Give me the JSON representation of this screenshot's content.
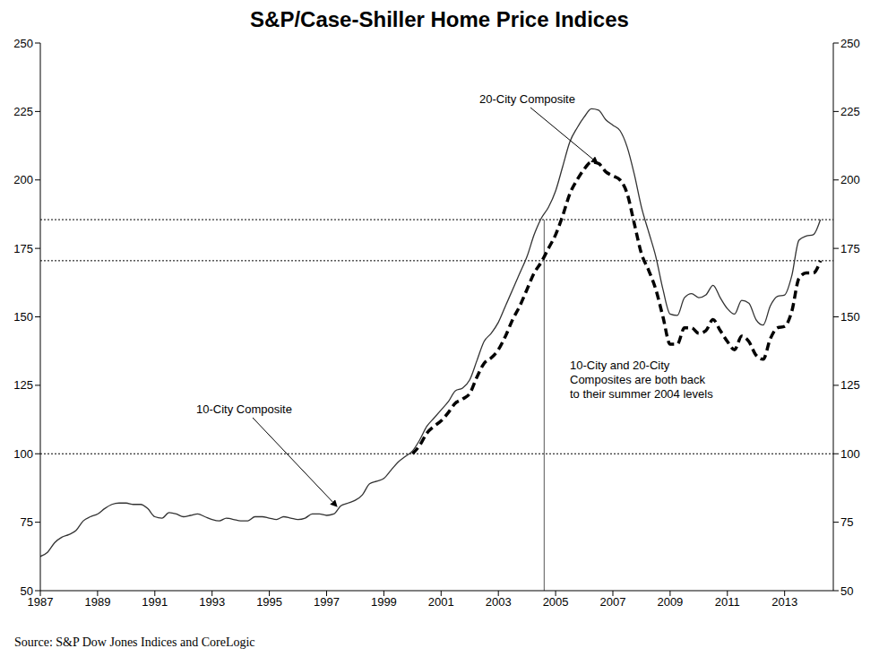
{
  "chart_data": {
    "type": "line",
    "title": "S&P/Case-Shiller Home Price Indices",
    "source": "Source: S&P Dow Jones Indices and CoreLogic",
    "annotation": [
      "10-City and 20-City",
      "Composites are both back",
      "to their summer 2004 levels"
    ],
    "x": [
      1987,
      1987.25,
      1987.5,
      1987.75,
      1988,
      1988.25,
      1988.5,
      1988.75,
      1989,
      1989.25,
      1989.5,
      1989.75,
      1990,
      1990.25,
      1990.5,
      1990.75,
      1991,
      1991.25,
      1991.5,
      1991.75,
      1992,
      1992.25,
      1992.5,
      1992.75,
      1993,
      1993.25,
      1993.5,
      1993.75,
      1994,
      1994.25,
      1994.5,
      1994.75,
      1995,
      1995.25,
      1995.5,
      1995.75,
      1996,
      1996.25,
      1996.5,
      1996.75,
      1997,
      1997.25,
      1997.5,
      1997.75,
      1998,
      1998.25,
      1998.5,
      1998.75,
      1999,
      1999.25,
      1999.5,
      1999.75,
      2000,
      2000.25,
      2000.5,
      2000.75,
      2001,
      2001.25,
      2001.5,
      2001.75,
      2002,
      2002.25,
      2002.5,
      2002.75,
      2003,
      2003.25,
      2003.5,
      2003.75,
      2004,
      2004.25,
      2004.5,
      2004.75,
      2005,
      2005.25,
      2005.5,
      2005.75,
      2006,
      2006.25,
      2006.5,
      2006.75,
      2007,
      2007.25,
      2007.5,
      2007.75,
      2008,
      2008.25,
      2008.5,
      2008.75,
      2009,
      2009.25,
      2009.5,
      2009.75,
      2010,
      2010.25,
      2010.5,
      2010.75,
      2011,
      2011.25,
      2011.5,
      2011.75,
      2012,
      2012.25,
      2012.5,
      2012.75,
      2013,
      2013.25,
      2013.5,
      2013.75,
      2014,
      2014.25
    ],
    "series": [
      {
        "name": "10-City Composite",
        "color": "#333333",
        "line_style": "solid",
        "values": [
          62.5,
          64,
          67.5,
          69.5,
          70.5,
          72,
          75.5,
          77,
          78,
          80,
          81.5,
          82,
          82,
          81.5,
          81.5,
          80,
          77,
          76.5,
          78.5,
          78,
          77,
          77.5,
          78,
          77,
          76,
          75.5,
          76.5,
          76,
          75.5,
          75.5,
          77,
          77,
          76.5,
          76,
          77,
          76.5,
          76,
          76.5,
          78,
          78,
          77.5,
          78,
          81,
          82,
          83,
          85,
          89,
          90,
          91,
          94,
          97,
          99,
          101,
          105,
          110,
          113,
          116,
          119,
          123,
          124,
          127,
          134,
          141,
          144,
          148,
          154,
          160,
          166,
          172,
          180,
          186,
          190,
          196,
          205,
          214,
          219,
          223,
          226,
          225.5,
          222,
          220,
          218,
          212,
          202,
          190,
          181,
          172,
          160,
          151,
          150.5,
          157,
          158.5,
          157,
          158,
          161.5,
          157,
          153,
          151,
          156,
          155,
          149,
          147,
          154,
          157.5,
          158,
          165,
          178,
          179.5,
          180,
          185.5
        ]
      },
      {
        "name": "20-City Composite",
        "color": "#000000",
        "line_style": "dashed",
        "values": [
          null,
          null,
          null,
          null,
          null,
          null,
          null,
          null,
          null,
          null,
          null,
          null,
          null,
          null,
          null,
          null,
          null,
          null,
          null,
          null,
          null,
          null,
          null,
          null,
          null,
          null,
          null,
          null,
          null,
          null,
          null,
          null,
          null,
          null,
          null,
          null,
          null,
          null,
          null,
          null,
          null,
          null,
          null,
          null,
          null,
          null,
          null,
          null,
          null,
          null,
          null,
          null,
          100,
          103,
          107.5,
          110,
          112,
          115,
          118.5,
          120,
          122,
          128,
          133,
          135,
          138,
          143,
          149,
          154,
          160,
          166,
          170,
          175,
          180,
          187,
          195,
          200,
          204,
          206.5,
          206,
          203,
          201.5,
          200,
          195,
          184,
          173,
          167,
          160,
          150,
          140,
          140,
          146,
          146,
          144,
          145,
          149,
          145,
          141,
          138,
          143,
          141,
          136,
          134.5,
          142,
          146,
          146.5,
          152,
          164,
          166,
          166,
          170.5
        ]
      }
    ],
    "xlim": [
      1987,
      2014.7
    ],
    "xticks": [
      1987,
      1989,
      1991,
      1993,
      1995,
      1997,
      1999,
      2001,
      2003,
      2005,
      2007,
      2009,
      2011,
      2013
    ],
    "ylim": [
      50,
      250
    ],
    "yticks": [
      50,
      75,
      100,
      125,
      150,
      175,
      200,
      225,
      250
    ],
    "y2lim": [
      50,
      250
    ],
    "y2ticks": [
      50,
      75,
      100,
      125,
      150,
      175,
      200,
      225,
      250
    ],
    "hlines": [
      100,
      170.5,
      185.5
    ],
    "vline": {
      "x": 2004.6,
      "y": [
        50,
        185.5
      ]
    },
    "grid": false
  }
}
